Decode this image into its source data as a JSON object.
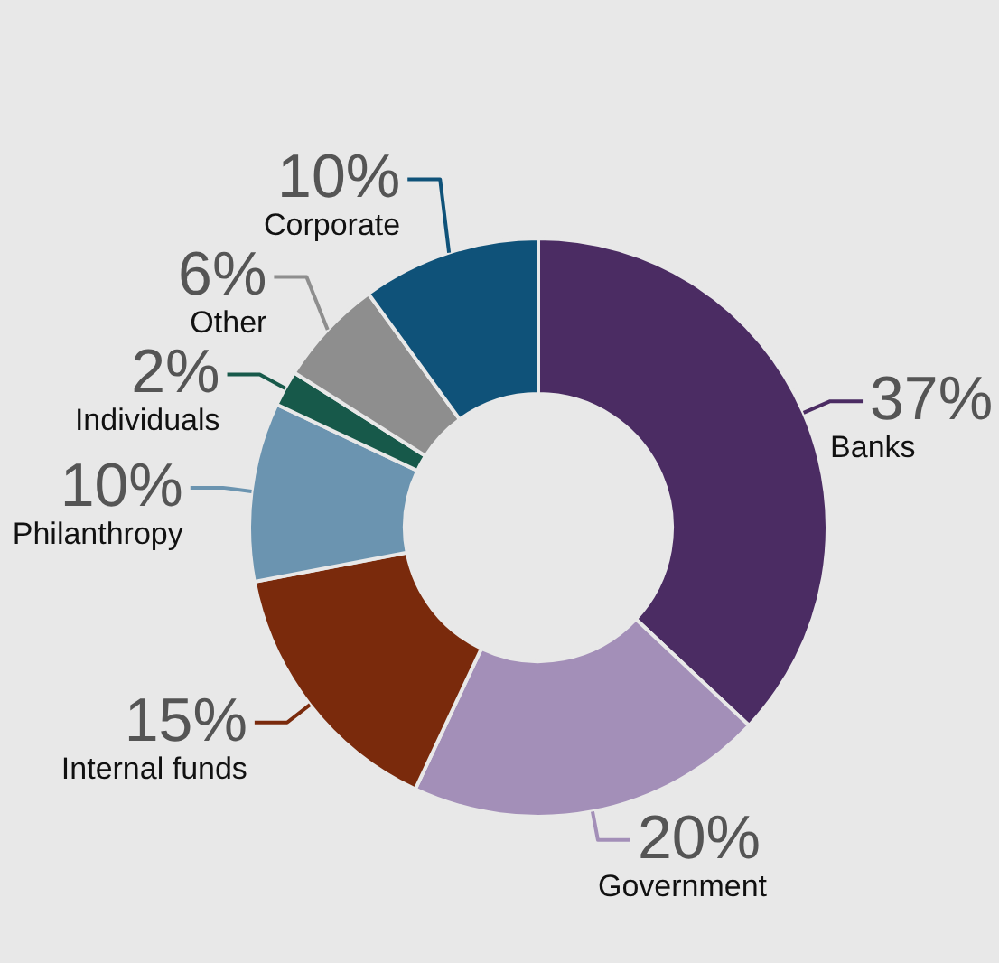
{
  "chart_data": {
    "type": "donut",
    "categories": [
      "Banks",
      "Government",
      "Internal funds",
      "Philanthropy",
      "Individuals",
      "Other",
      "Corporate"
    ],
    "values": [
      37,
      20,
      15,
      10,
      2,
      6,
      10
    ],
    "colors": [
      "#4b2c63",
      "#a38fb8",
      "#7a2a0c",
      "#6b94b0",
      "#17594a",
      "#8e8e8e",
      "#0f5279"
    ],
    "value_labels": [
      "37%",
      "20%",
      "15%",
      "10%",
      "2%",
      "6%",
      "10%"
    ]
  }
}
